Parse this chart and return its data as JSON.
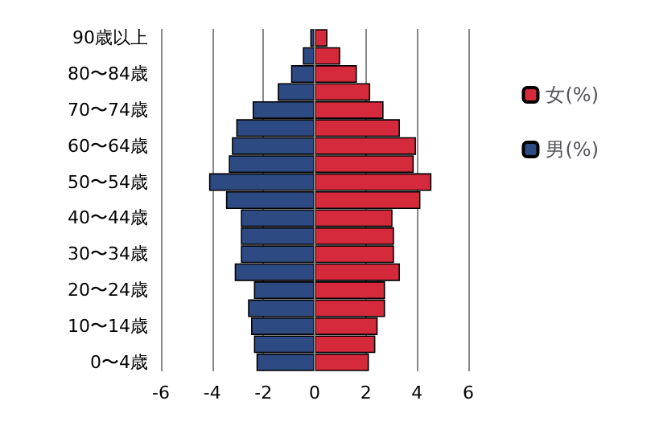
{
  "chart_data": {
    "type": "bar",
    "orientation": "horizontal",
    "stacked": true,
    "categories": [
      "90歳以上",
      null,
      "80〜84歳",
      null,
      "70〜74歳",
      null,
      "60〜64歳",
      null,
      "50〜54歳",
      null,
      "40〜44歳",
      null,
      "30〜34歳",
      null,
      "20〜24歳",
      null,
      "10〜14歳",
      null,
      "0〜4歳"
    ],
    "series": [
      {
        "name": "女(%)",
        "color": "#d42a3c",
        "values": [
          0.5,
          1.0,
          1.65,
          2.17,
          2.69,
          3.33,
          3.96,
          3.87,
          4.56,
          4.13,
          3.04,
          3.1,
          3.1,
          3.33,
          2.75,
          2.75,
          2.46,
          2.37,
          2.12
        ]
      },
      {
        "name": "男(%)",
        "color": "#2e4a82",
        "values": [
          -0.17,
          -0.46,
          -0.92,
          -1.44,
          -2.42,
          -3.06,
          -3.23,
          -3.35,
          -4.12,
          -3.46,
          -2.88,
          -2.88,
          -2.88,
          -3.12,
          -2.37,
          -2.6,
          -2.48,
          -2.37,
          -2.27
        ]
      }
    ],
    "xlim": [
      -6,
      6
    ],
    "xticks": [
      -6,
      -4,
      -2,
      0,
      2,
      4,
      6
    ],
    "grid": "x",
    "legend": "right"
  }
}
